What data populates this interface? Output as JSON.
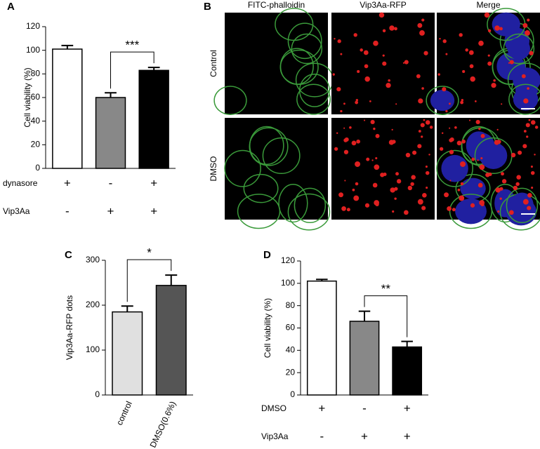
{
  "panel_labels": [
    "A",
    "B",
    "C",
    "D"
  ],
  "panel_b": {
    "columns": [
      "FITC-phalloidin",
      "Vip3Aa-RFP",
      "Merge"
    ],
    "rows": [
      "Control",
      "DMSO"
    ]
  },
  "chart_data": [
    {
      "type": "bar",
      "ylabel": "Cell viability (%)",
      "ylim": [
        0,
        120
      ],
      "yticks": [
        0,
        20,
        40,
        60,
        80,
        100,
        120
      ],
      "categories": [
        null,
        null,
        null
      ],
      "values": [
        101,
        60,
        83
      ],
      "errors": [
        3,
        4,
        2.5
      ],
      "colors": [
        "#ffffff",
        "#888888",
        "#000000"
      ],
      "annotations": [
        {
          "text": "***",
          "between": [
            1,
            2
          ]
        }
      ],
      "conditions": [
        {
          "name": "dynasore",
          "signs": [
            "+",
            "-",
            "+"
          ]
        },
        {
          "name": "Vip3Aa",
          "signs": [
            "-",
            "+",
            "+"
          ]
        }
      ]
    },
    {
      "type": "bar",
      "ylabel": "Vip3Aa-RFP dots",
      "ylim": [
        0,
        300
      ],
      "yticks": [
        0,
        100,
        200,
        300
      ],
      "categories": [
        "control",
        "DMSO(0.6%)"
      ],
      "values": [
        185,
        244
      ],
      "errors": [
        13,
        23
      ],
      "colors": [
        "#e0e0e0",
        "#555555"
      ],
      "annotations": [
        {
          "text": "*",
          "between": [
            0,
            1
          ]
        }
      ]
    },
    {
      "type": "bar",
      "ylabel": "Cell viability (%)",
      "ylim": [
        0,
        120
      ],
      "yticks": [
        0,
        20,
        40,
        60,
        80,
        100,
        120
      ],
      "categories": [
        null,
        null,
        null
      ],
      "values": [
        102,
        66,
        43
      ],
      "errors": [
        1.5,
        9,
        5
      ],
      "colors": [
        "#ffffff",
        "#888888",
        "#000000"
      ],
      "annotations": [
        {
          "text": "**",
          "between": [
            1,
            2
          ]
        }
      ],
      "conditions": [
        {
          "name": "DMSO",
          "signs": [
            "+",
            "-",
            "+"
          ]
        },
        {
          "name": "Vip3Aa",
          "signs": [
            "-",
            "+",
            "+"
          ]
        }
      ]
    }
  ]
}
